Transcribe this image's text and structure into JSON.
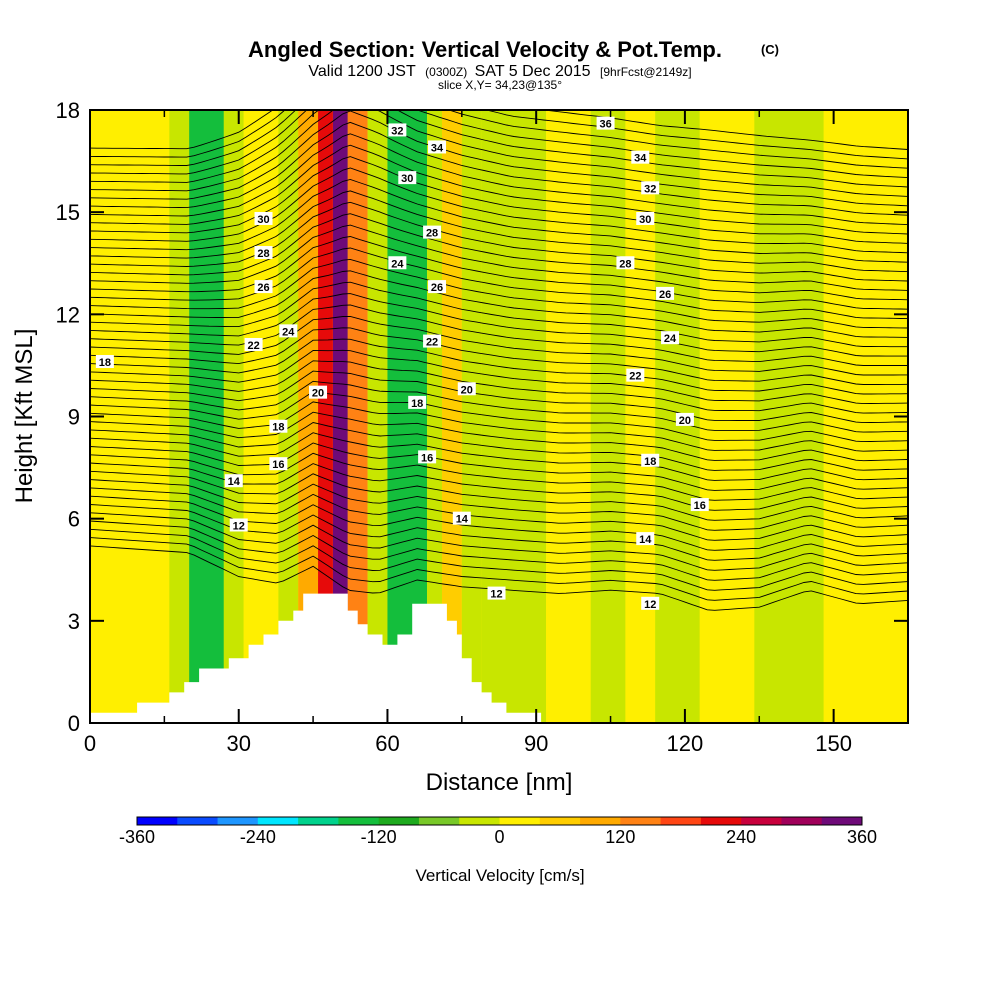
{
  "chart_data": {
    "type": "heatmap",
    "title": "Angled Section: Vertical Velocity & Pot.Temp.",
    "title_tag": "(C)",
    "subtitle_pre": "Valid 1200 JST",
    "subtitle_utc": "(0300Z)",
    "subtitle_date": "SAT 5 Dec 2015",
    "subtitle_fcst": "[9hrFcst@2149z]",
    "slice_label": "slice X,Y= 34,23@135°",
    "xlabel": "Distance [nm]",
    "ylabel": "Height [Kft MSL]",
    "xlim": [
      0,
      165
    ],
    "ylim": [
      0,
      18
    ],
    "x_ticks": [
      0,
      30,
      60,
      90,
      120,
      150
    ],
    "y_ticks": [
      0,
      3,
      6,
      9,
      12,
      15,
      18
    ],
    "colorbar": {
      "label": "Vertical Velocity [cm/s]",
      "range": [
        -360,
        360
      ],
      "tick_values": [
        -360,
        -240,
        -120,
        0,
        120,
        240,
        360
      ],
      "tick_labels": [
        "-360",
        "-240",
        "-120",
        "0",
        "120",
        "240",
        "360"
      ],
      "colors": [
        "#0000ff",
        "#0a4bff",
        "#1e96ff",
        "#00e6ff",
        "#00d28c",
        "#14be3c",
        "#1eaa1e",
        "#78c828",
        "#c8e600",
        "#ffef00",
        "#ffcd00",
        "#ffaa00",
        "#ff8214",
        "#ff4614",
        "#e60a0a",
        "#c8003c",
        "#a0005a",
        "#6e0a78"
      ]
    },
    "vertical_velocity_bands": [
      {
        "x_start": 0,
        "x_end": 16,
        "value": 15
      },
      {
        "x_start": 16,
        "x_end": 20,
        "value": -40
      },
      {
        "x_start": 20,
        "x_end": 27,
        "value": -140
      },
      {
        "x_start": 27,
        "x_end": 31,
        "value": -40
      },
      {
        "x_start": 31,
        "x_end": 38,
        "value": 30
      },
      {
        "x_start": 38,
        "x_end": 42,
        "value": -30
      },
      {
        "x_start": 42,
        "x_end": 46,
        "value": 90
      },
      {
        "x_start": 46,
        "x_end": 49,
        "value": 220
      },
      {
        "x_start": 49,
        "x_end": 52,
        "value": 330
      },
      {
        "x_start": 52,
        "x_end": 56,
        "value": 120
      },
      {
        "x_start": 56,
        "x_end": 60,
        "value": -40
      },
      {
        "x_start": 60,
        "x_end": 68,
        "value": -140
      },
      {
        "x_start": 68,
        "x_end": 71,
        "value": -40
      },
      {
        "x_start": 71,
        "x_end": 75,
        "value": 40
      },
      {
        "x_start": 75,
        "x_end": 79,
        "value": -40
      },
      {
        "x_start": 79,
        "x_end": 92,
        "value": -20
      },
      {
        "x_start": 92,
        "x_end": 101,
        "value": 15
      },
      {
        "x_start": 101,
        "x_end": 108,
        "value": -20
      },
      {
        "x_start": 108,
        "x_end": 114,
        "value": 15
      },
      {
        "x_start": 114,
        "x_end": 123,
        "value": -20
      },
      {
        "x_start": 123,
        "x_end": 134,
        "value": 15
      },
      {
        "x_start": 134,
        "x_end": 148,
        "value": -20
      },
      {
        "x_start": 148,
        "x_end": 165,
        "value": 15
      }
    ],
    "terrain": [
      [
        0,
        0.3
      ],
      [
        9.5,
        0.3
      ],
      [
        9.5,
        0.6
      ],
      [
        16,
        0.6
      ],
      [
        16,
        0.9
      ],
      [
        19,
        0.9
      ],
      [
        19,
        1.2
      ],
      [
        22,
        1.2
      ],
      [
        22,
        1.6
      ],
      [
        28,
        1.6
      ],
      [
        28,
        1.9
      ],
      [
        32,
        1.9
      ],
      [
        32,
        2.3
      ],
      [
        35,
        2.3
      ],
      [
        35,
        2.6
      ],
      [
        38,
        2.6
      ],
      [
        38,
        3.0
      ],
      [
        41,
        3.0
      ],
      [
        41,
        3.3
      ],
      [
        43,
        3.3
      ],
      [
        43,
        3.8
      ],
      [
        52,
        3.8
      ],
      [
        52,
        3.3
      ],
      [
        54,
        3.3
      ],
      [
        54,
        2.9
      ],
      [
        56,
        2.9
      ],
      [
        56,
        2.6
      ],
      [
        59,
        2.6
      ],
      [
        59,
        2.3
      ],
      [
        62,
        2.3
      ],
      [
        62,
        2.6
      ],
      [
        65,
        2.6
      ],
      [
        65,
        3.5
      ],
      [
        72,
        3.5
      ],
      [
        72,
        3.0
      ],
      [
        74,
        3.0
      ],
      [
        74,
        2.6
      ],
      [
        75,
        2.6
      ],
      [
        75,
        1.9
      ],
      [
        77,
        1.9
      ],
      [
        77,
        1.2
      ],
      [
        79,
        1.2
      ],
      [
        79,
        0.9
      ],
      [
        81,
        0.9
      ],
      [
        81,
        0.6
      ],
      [
        84,
        0.6
      ],
      [
        84,
        0.3
      ],
      [
        91,
        0.3
      ],
      [
        91,
        0.0
      ],
      [
        0,
        0.0
      ]
    ],
    "pot_temp_isotherms": {
      "start_value": 12,
      "step": 0.5,
      "count": 49,
      "base": {
        "x": [
          0,
          10,
          20,
          30,
          38,
          45,
          52,
          58,
          66,
          75,
          85,
          95,
          105,
          115,
          125,
          135,
          145,
          155,
          165
        ],
        "y": [
          5.2,
          5.1,
          5.0,
          4.3,
          4.1,
          4.6,
          3.9,
          3.8,
          4.2,
          4.0,
          3.9,
          3.8,
          3.9,
          3.8,
          3.3,
          3.4,
          3.9,
          3.5,
          3.6
        ]
      },
      "top_at_18": {
        "x": [
          0,
          10,
          20,
          30,
          38,
          45,
          52,
          58,
          66,
          75,
          85,
          95,
          105,
          115,
          125,
          135,
          145,
          155,
          165
        ],
        "y": [
          38.3,
          38.3,
          38.3,
          37.2,
          35.8,
          34.2,
          33.0,
          33.5,
          34.5,
          35.2,
          35.8,
          36.1,
          36.4,
          36.8,
          37.0,
          37.3,
          37.6,
          37.9,
          38.1
        ]
      }
    },
    "isotherm_labels": [
      {
        "text": "18",
        "x": 3,
        "y": 10.6
      },
      {
        "text": "12",
        "x": 30,
        "y": 5.8
      },
      {
        "text": "14",
        "x": 29,
        "y": 7.1
      },
      {
        "text": "16",
        "x": 38,
        "y": 7.6
      },
      {
        "text": "18",
        "x": 38,
        "y": 8.7
      },
      {
        "text": "20",
        "x": 46,
        "y": 9.7
      },
      {
        "text": "22",
        "x": 33,
        "y": 11.1
      },
      {
        "text": "24",
        "x": 40,
        "y": 11.5
      },
      {
        "text": "26",
        "x": 35,
        "y": 12.8
      },
      {
        "text": "28",
        "x": 35,
        "y": 13.8
      },
      {
        "text": "30",
        "x": 35,
        "y": 14.8
      },
      {
        "text": "32",
        "x": 62,
        "y": 17.4
      },
      {
        "text": "34",
        "x": 70,
        "y": 16.9
      },
      {
        "text": "30",
        "x": 64,
        "y": 16.0
      },
      {
        "text": "28",
        "x": 69,
        "y": 14.4
      },
      {
        "text": "24",
        "x": 62,
        "y": 13.5
      },
      {
        "text": "26",
        "x": 70,
        "y": 12.8
      },
      {
        "text": "22",
        "x": 69,
        "y": 11.2
      },
      {
        "text": "20",
        "x": 76,
        "y": 9.8
      },
      {
        "text": "18",
        "x": 66,
        "y": 9.4
      },
      {
        "text": "16",
        "x": 68,
        "y": 7.8
      },
      {
        "text": "14",
        "x": 75,
        "y": 6.0
      },
      {
        "text": "12",
        "x": 82,
        "y": 3.8
      },
      {
        "text": "36",
        "x": 104,
        "y": 17.6
      },
      {
        "text": "34",
        "x": 111,
        "y": 16.6
      },
      {
        "text": "32",
        "x": 113,
        "y": 15.7
      },
      {
        "text": "30",
        "x": 112,
        "y": 14.8
      },
      {
        "text": "28",
        "x": 108,
        "y": 13.5
      },
      {
        "text": "26",
        "x": 116,
        "y": 12.6
      },
      {
        "text": "24",
        "x": 117,
        "y": 11.3
      },
      {
        "text": "22",
        "x": 110,
        "y": 10.2
      },
      {
        "text": "20",
        "x": 120,
        "y": 8.9
      },
      {
        "text": "18",
        "x": 113,
        "y": 7.7
      },
      {
        "text": "16",
        "x": 123,
        "y": 6.4
      },
      {
        "text": "14",
        "x": 112,
        "y": 5.4
      },
      {
        "text": "12",
        "x": 113,
        "y": 3.5
      }
    ]
  }
}
